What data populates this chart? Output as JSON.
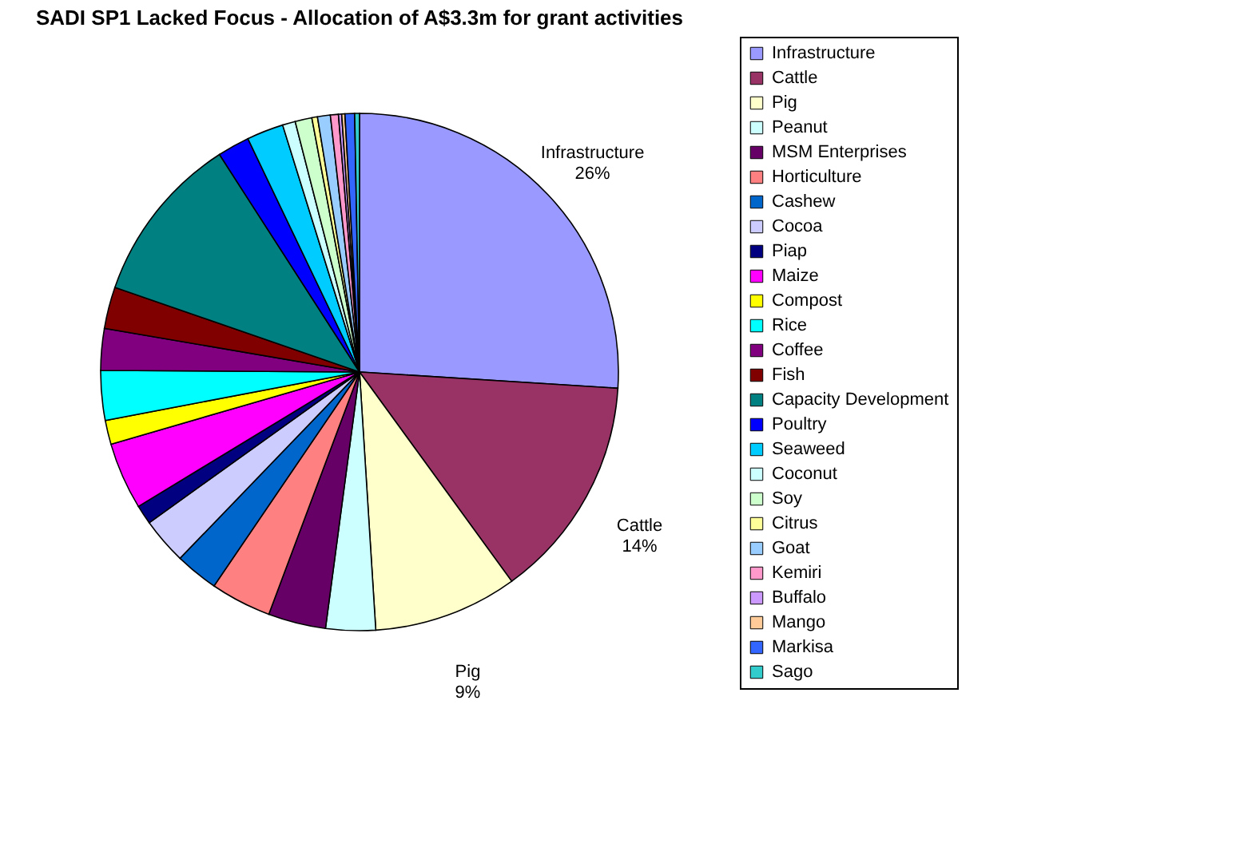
{
  "chart_data": {
    "type": "pie",
    "title": "SADI SP1 Lacked Focus - Allocation of A$3.3m for grant activities",
    "categories": [
      "Infrastructure",
      "Cattle",
      "Pig",
      "Peanut",
      "MSM Enterprises",
      "Horticulture",
      "Cashew",
      "Cocoa",
      "Piap",
      "Maize",
      "Compost",
      "Rice",
      "Coffee",
      "Fish",
      "Capacity Development",
      "Poultry",
      "Seaweed",
      "Coconut",
      "Soy",
      "Citrus",
      "Goat",
      "Kemiri",
      "Buffalo",
      "Mango",
      "Markisa",
      "Sago"
    ],
    "values": [
      26,
      14,
      9,
      3.1,
      3.6,
      3.8,
      2.7,
      2.9,
      1.2,
      4.2,
      1.5,
      3.1,
      2.6,
      2.6,
      10.6,
      2.0,
      2.3,
      0.8,
      1.05,
      0.35,
      0.8,
      0.5,
      0.2,
      0.2,
      0.6,
      0.3
    ],
    "colors": [
      "#9999ff",
      "#993366",
      "#ffffcc",
      "#ccffff",
      "#660066",
      "#ff8080",
      "#0066cc",
      "#ccccff",
      "#000080",
      "#ff00ff",
      "#ffff00",
      "#00ffff",
      "#800080",
      "#800000",
      "#008080",
      "#0000ff",
      "#00ccff",
      "#ccffff",
      "#ccffcc",
      "#ffff99",
      "#99ccff",
      "#ff99cc",
      "#cc99ff",
      "#ffcc99",
      "#3366ff",
      "#33cccc"
    ],
    "value_labels": [
      "26%",
      "14%",
      "9%",
      null,
      null,
      null,
      null,
      null,
      null,
      null,
      null,
      null,
      null,
      null,
      null,
      null,
      null,
      null,
      null,
      null,
      null,
      null,
      null,
      null,
      null,
      null
    ],
    "legend": "right"
  }
}
